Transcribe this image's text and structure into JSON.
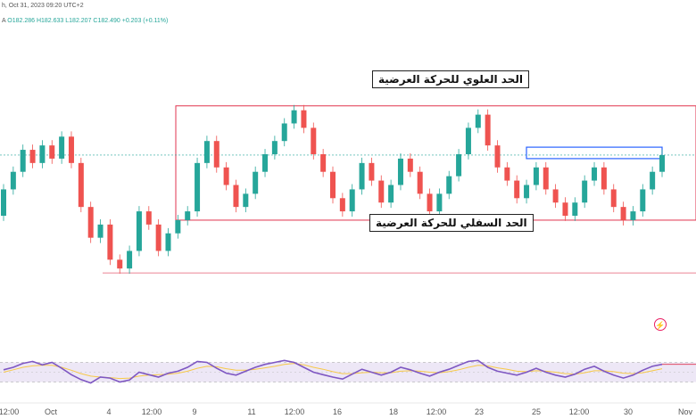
{
  "header": {
    "title_fragment": "h, Oct 31, 2023 09:20 UTC+2",
    "ohlc_fragment": "A",
    "open": "O182.286",
    "high": "H182.633",
    "low": "L182.207",
    "close": "C182.490",
    "change": "+0.203 (+0.11%)"
  },
  "annotations": {
    "upper_range": "الحد العلوي للحركة العرضية",
    "lower_range": "الحد السفلي للحركة العرضية"
  },
  "icons": {
    "event": "lightning-icon"
  },
  "colors": {
    "up": "#26a69a",
    "down": "#ef5350",
    "range_box": "#e0334f",
    "breakout_box": "#2962ff",
    "oscillator": "#7e57c2",
    "signal": "#f7c948",
    "osc_band": "#ede7f6"
  },
  "chart_data": {
    "type": "candlestick",
    "x_tick_labels": [
      "12:00",
      "Oct",
      "4",
      "12:00",
      "9",
      "11",
      "12:00",
      "16",
      "18",
      "12:00",
      "23",
      "25",
      "12:00",
      "30",
      "Nov"
    ],
    "price_ylim": [
      180.35,
      183.95
    ],
    "range_upper": 183.05,
    "range_lower": 181.75,
    "support_line": 181.15,
    "breakout_zone": [
      182.45,
      182.58
    ],
    "candles": [
      [
        181.8,
        182.1
      ],
      [
        182.1,
        182.3
      ],
      [
        182.3,
        182.55
      ],
      [
        182.55,
        182.4
      ],
      [
        182.4,
        182.6
      ],
      [
        182.6,
        182.45
      ],
      [
        182.45,
        182.7
      ],
      [
        182.7,
        182.4
      ],
      [
        182.4,
        181.9
      ],
      [
        181.9,
        181.55
      ],
      [
        181.55,
        181.7
      ],
      [
        181.7,
        181.3
      ],
      [
        181.3,
        181.2
      ],
      [
        181.2,
        181.4
      ],
      [
        181.4,
        181.85
      ],
      [
        181.85,
        181.7
      ],
      [
        181.7,
        181.4
      ],
      [
        181.4,
        181.6
      ],
      [
        181.6,
        181.75
      ],
      [
        181.75,
        181.85
      ],
      [
        181.85,
        182.4
      ],
      [
        182.4,
        182.65
      ],
      [
        182.65,
        182.35
      ],
      [
        182.35,
        182.15
      ],
      [
        182.15,
        181.9
      ],
      [
        181.9,
        182.05
      ],
      [
        182.05,
        182.3
      ],
      [
        182.3,
        182.5
      ],
      [
        182.5,
        182.65
      ],
      [
        182.65,
        182.85
      ],
      [
        182.85,
        183.0
      ],
      [
        183.0,
        182.8
      ],
      [
        182.8,
        182.5
      ],
      [
        182.5,
        182.3
      ],
      [
        182.3,
        182.0
      ],
      [
        182.0,
        181.85
      ],
      [
        181.85,
        182.1
      ],
      [
        182.1,
        182.4
      ],
      [
        182.4,
        182.2
      ],
      [
        182.2,
        181.95
      ],
      [
        181.95,
        182.15
      ],
      [
        182.15,
        182.45
      ],
      [
        182.45,
        182.3
      ],
      [
        182.3,
        182.05
      ],
      [
        182.05,
        181.85
      ],
      [
        181.85,
        182.05
      ],
      [
        182.05,
        182.25
      ],
      [
        182.25,
        182.5
      ],
      [
        182.5,
        182.8
      ],
      [
        182.8,
        182.95
      ],
      [
        182.95,
        182.6
      ],
      [
        182.6,
        182.35
      ],
      [
        182.35,
        182.2
      ],
      [
        182.2,
        182.0
      ],
      [
        182.0,
        182.15
      ],
      [
        182.15,
        182.35
      ],
      [
        182.35,
        182.1
      ],
      [
        182.1,
        181.95
      ],
      [
        181.95,
        181.8
      ],
      [
        181.8,
        181.95
      ],
      [
        181.95,
        182.2
      ],
      [
        182.2,
        182.35
      ],
      [
        182.35,
        182.1
      ],
      [
        182.1,
        181.9
      ],
      [
        181.9,
        181.75
      ],
      [
        181.75,
        181.85
      ],
      [
        181.85,
        182.1
      ],
      [
        182.1,
        182.3
      ],
      [
        182.3,
        182.49
      ]
    ],
    "oscillator": {
      "ylim": [
        0,
        100
      ],
      "levels": [
        70,
        30
      ],
      "rsi": [
        55,
        60,
        68,
        72,
        65,
        70,
        58,
        45,
        35,
        28,
        40,
        38,
        30,
        34,
        50,
        45,
        40,
        48,
        52,
        60,
        72,
        70,
        58,
        48,
        44,
        52,
        60,
        66,
        70,
        74,
        70,
        60,
        50,
        45,
        40,
        36,
        46,
        56,
        50,
        44,
        50,
        60,
        55,
        48,
        42,
        50,
        56,
        64,
        72,
        74,
        60,
        52,
        48,
        44,
        50,
        58,
        50,
        44,
        40,
        46,
        56,
        62,
        52,
        44,
        38,
        44,
        54,
        62,
        66
      ],
      "signal": [
        50,
        55,
        60,
        63,
        64,
        64,
        60,
        54,
        47,
        42,
        40,
        39,
        37,
        38,
        42,
        44,
        45,
        46,
        48,
        52,
        58,
        62,
        61,
        57,
        54,
        54,
        56,
        59,
        62,
        66,
        68,
        65,
        60,
        56,
        51,
        47,
        47,
        49,
        50,
        49,
        49,
        52,
        53,
        52,
        50,
        49,
        51,
        55,
        60,
        64,
        63,
        59,
        56,
        52,
        51,
        53,
        52,
        50,
        47,
        46,
        49,
        53,
        53,
        51,
        48,
        47,
        49,
        53,
        57
      ]
    }
  }
}
